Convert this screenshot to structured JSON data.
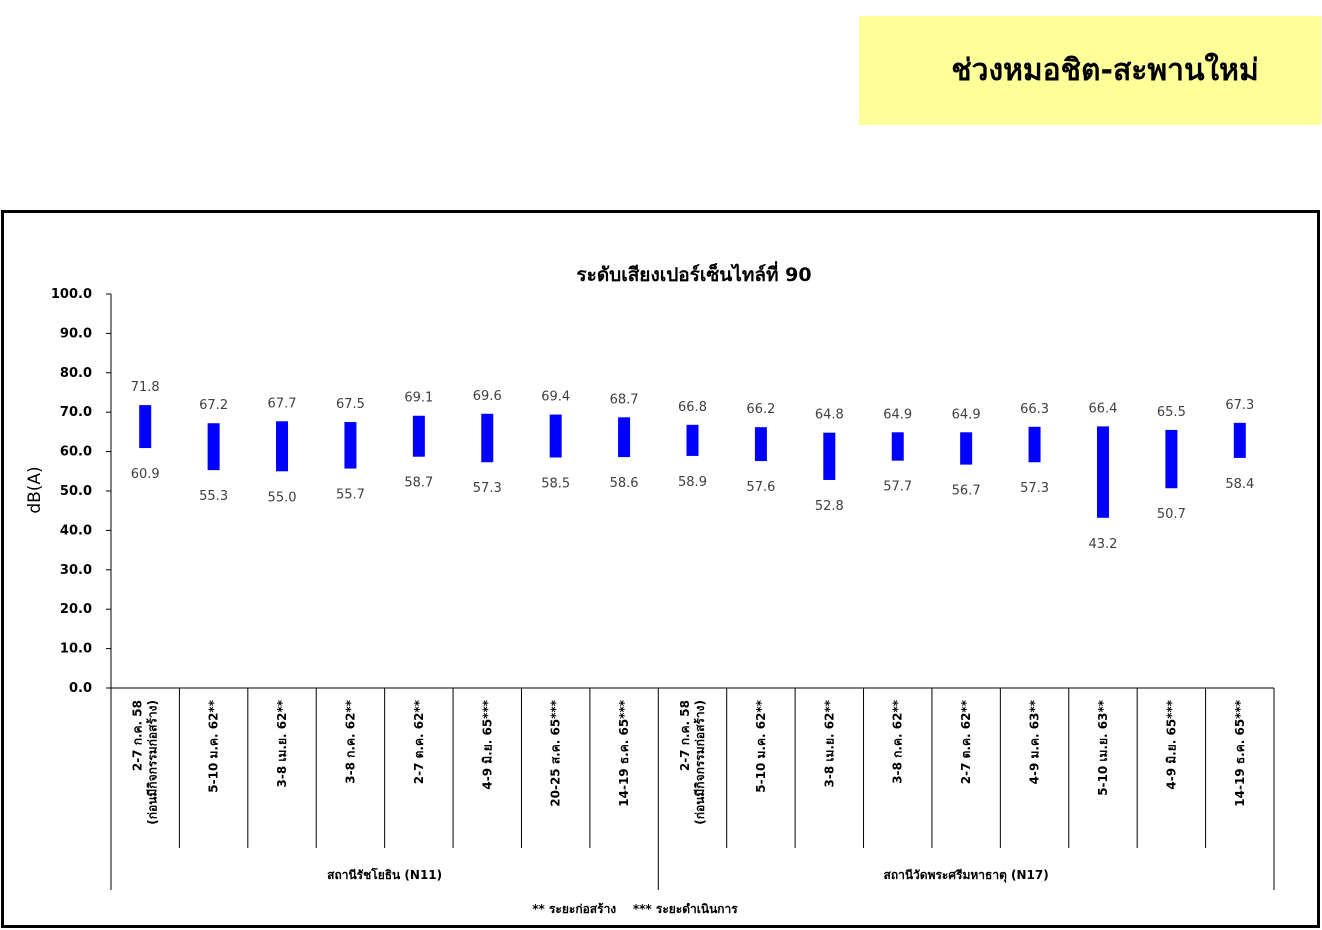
{
  "header": {
    "title": "ช่วงหมอชิต-สะพานใหม่"
  },
  "footnote": "** ระยะก่อสร้าง    *** ระยะดำเนินการ",
  "chart_data": {
    "type": "floating-bar",
    "title": "ระดับเสียงเปอร์เซ็นไทล์ที่ 90",
    "ylabel": "dB(A)",
    "xlabel": "",
    "ylim": [
      0,
      100
    ],
    "yticks": [
      "0.0",
      "10.0",
      "20.0",
      "30.0",
      "40.0",
      "50.0",
      "60.0",
      "70.0",
      "80.0",
      "90.0",
      "100.0"
    ],
    "bar_color": "#0000ff",
    "grid": false,
    "groups": [
      {
        "label": "สถานีรัชโยธิน (N11)",
        "start": 0,
        "count": 8
      },
      {
        "label": "สถานีวัดพระศรีมหาธาตุ (N17)",
        "start": 8,
        "count": 9
      }
    ],
    "categories": [
      [
        "2-7 ก.ค. 58",
        "(ก่อนมีกิจกรรมก่อสร้าง)"
      ],
      [
        "5-10 ม.ค. 62**"
      ],
      [
        "3-8 เม.ย. 62**"
      ],
      [
        "3-8 ก.ค. 62**"
      ],
      [
        "2-7 ต.ค. 62**"
      ],
      [
        "4-9 มิ.ย. 65***"
      ],
      [
        "20-25 ส.ค. 65***"
      ],
      [
        "14-19 ธ.ค. 65***"
      ],
      [
        "2-7 ก.ค. 58",
        "(ก่อนมีกิจกรรมก่อสร้าง)"
      ],
      [
        "5-10 ม.ค. 62**"
      ],
      [
        "3-8 เม.ย. 62**"
      ],
      [
        "3-8 ก.ค. 62**"
      ],
      [
        "2-7 ต.ค. 62**"
      ],
      [
        "4-9 ม.ค. 63**"
      ],
      [
        "5-10 เม.ย. 63**"
      ],
      [
        "4-9 มิ.ย. 65***"
      ],
      [
        "14-19 ธ.ค. 65***"
      ]
    ],
    "series": [
      {
        "values_high": [
          71.8,
          67.2,
          67.7,
          67.5,
          69.1,
          69.6,
          69.4,
          68.7,
          66.8,
          66.2,
          64.8,
          64.9,
          64.9,
          66.3,
          66.4,
          65.5,
          67.3
        ]
      },
      {
        "values_low": [
          60.9,
          55.3,
          55.0,
          55.7,
          58.7,
          57.3,
          58.5,
          58.6,
          58.9,
          57.6,
          52.8,
          57.7,
          56.7,
          57.3,
          43.2,
          50.7,
          58.4
        ]
      }
    ],
    "high_labels": [
      "71.8",
      "67.2",
      "67.7",
      "67.5",
      "69.1",
      "69.6",
      "69.4",
      "68.7",
      "66.8",
      "66.2",
      "64.8",
      "64.9",
      "64.9",
      "66.3",
      "66.4",
      "65.5",
      "67.3"
    ],
    "low_labels": [
      "60.9",
      "55.3",
      "55.0",
      "55.7",
      "58.7",
      "57.3",
      "58.5",
      "58.6",
      "58.9",
      "57.6",
      "52.8",
      "57.7",
      "56.7",
      "57.3",
      "43.2",
      "50.7",
      "58.4"
    ]
  }
}
